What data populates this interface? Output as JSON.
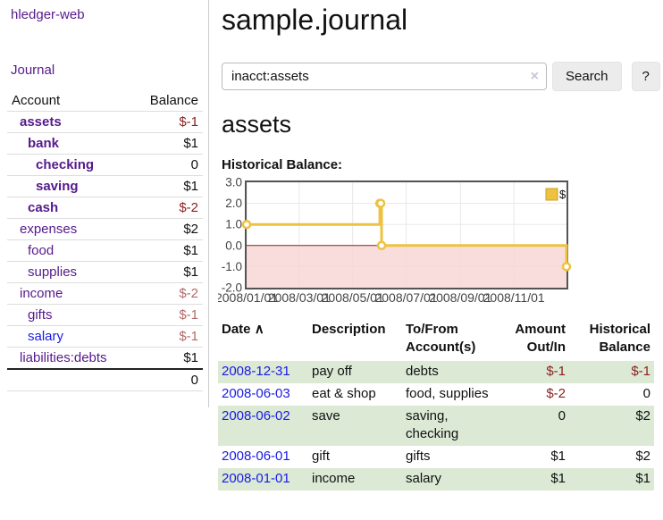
{
  "sidebar": {
    "brand": "hledger-web",
    "journal_link": "Journal",
    "accounts_table": {
      "account_header": "Account",
      "balance_header": "Balance",
      "rows": [
        {
          "name": "assets",
          "indent": 1,
          "balance": "$-1",
          "bold": true,
          "neg": "strong"
        },
        {
          "name": "bank",
          "indent": 2,
          "balance": "$1",
          "bold": true,
          "neg": "none"
        },
        {
          "name": "checking",
          "indent": 3,
          "balance": "0",
          "bold": true,
          "neg": "none"
        },
        {
          "name": "saving",
          "indent": 3,
          "balance": "$1",
          "bold": true,
          "neg": "none"
        },
        {
          "name": "cash",
          "indent": 2,
          "balance": "$-2",
          "bold": true,
          "neg": "strong"
        },
        {
          "name": "expenses",
          "indent": 1,
          "balance": "$2",
          "bold": false,
          "neg": "none"
        },
        {
          "name": "food",
          "indent": 2,
          "balance": "$1",
          "bold": false,
          "neg": "none"
        },
        {
          "name": "supplies",
          "indent": 2,
          "balance": "$1",
          "bold": false,
          "neg": "none"
        },
        {
          "name": "income",
          "indent": 1,
          "balance": "$-2",
          "bold": false,
          "neg": "soft"
        },
        {
          "name": "gifts",
          "indent": 2,
          "balance": "$-1",
          "bold": false,
          "neg": "soft"
        },
        {
          "name": "salary",
          "indent": 2,
          "balance": "$-1",
          "bold": false,
          "neg": "soft",
          "link": "blue"
        },
        {
          "name": "liabilities:debts",
          "indent": 1,
          "balance": "$1",
          "bold": false,
          "neg": "none"
        }
      ],
      "total": "0"
    }
  },
  "main": {
    "title": "sample.journal",
    "search": {
      "value": "inacct:assets",
      "clear_icon": "×",
      "search_button": "Search",
      "help_button": "?"
    },
    "account_heading": "assets",
    "chart_title": "Historical Balance:",
    "register_table": {
      "headers": [
        "Date",
        "Description",
        "To/From Account(s)",
        "Amount Out/In",
        "Historical Balance"
      ],
      "sort_icon": "∧",
      "rows": [
        {
          "date": "2008-12-31",
          "description": "pay off",
          "accounts": "debts",
          "amount": "$-1",
          "amount_neg": true,
          "balance": "$-1",
          "balance_neg": true,
          "stripe": true
        },
        {
          "date": "2008-06-03",
          "description": "eat & shop",
          "accounts": "food, supplies",
          "amount": "$-2",
          "amount_neg": true,
          "balance": "0",
          "balance_neg": false,
          "stripe": false
        },
        {
          "date": "2008-06-02",
          "description": "save",
          "accounts": "saving, checking",
          "amount": "0",
          "amount_neg": false,
          "balance": "$2",
          "balance_neg": false,
          "stripe": true
        },
        {
          "date": "2008-06-01",
          "description": "gift",
          "accounts": "gifts",
          "amount": "$1",
          "amount_neg": false,
          "balance": "$2",
          "balance_neg": false,
          "stripe": false
        },
        {
          "date": "2008-01-01",
          "description": "income",
          "accounts": "salary",
          "amount": "$1",
          "amount_neg": false,
          "balance": "$1",
          "balance_neg": false,
          "stripe": true
        }
      ]
    }
  },
  "chart_data": {
    "type": "line",
    "step": true,
    "title": "Historical Balance",
    "x_range": [
      "2008-01-01",
      "2008-12-31"
    ],
    "y_range": [
      -2,
      3
    ],
    "x_ticks": [
      {
        "date": "2008-01-01",
        "label": "2008/01/01"
      },
      {
        "date": "2008-03-01",
        "label": "2008/03/01"
      },
      {
        "date": "2008-05-01",
        "label": "2008/05/01"
      },
      {
        "date": "2008-07-01",
        "label": "2008/07/01"
      },
      {
        "date": "2008-09-01",
        "label": "2008/09/01"
      },
      {
        "date": "2008-11-01",
        "label": "2008/11/01"
      }
    ],
    "y_ticks": [
      {
        "value": 3,
        "label": "3.0"
      },
      {
        "value": 2,
        "label": "2.0"
      },
      {
        "value": 1,
        "label": "1.0"
      },
      {
        "value": 0,
        "label": "0.0"
      },
      {
        "value": -1,
        "label": "-1.0"
      },
      {
        "value": -2,
        "label": "-2.0"
      }
    ],
    "series": [
      {
        "name": "$",
        "color": "#edc240",
        "points": [
          [
            "2008-01-01",
            1
          ],
          [
            "2008-06-01",
            2
          ],
          [
            "2008-06-02",
            2
          ],
          [
            "2008-06-03",
            0
          ],
          [
            "2008-12-31",
            -1
          ]
        ]
      }
    ],
    "legend_label": "$",
    "legend_position": "top-right",
    "grid": true,
    "gridline_color": "#e8e8e8",
    "negative_region_color": "#f7d4d4",
    "zero_line_color": "#8b2020",
    "border_color": "#545454"
  },
  "colors": {
    "link_purple": "#551a8b",
    "link_blue": "#1a1ae6",
    "negative_strong": "#8b1f1f",
    "negative_soft": "#b36a6a",
    "row_stripe_green": "#dbe9d5",
    "chart_line_gold": "#edc240"
  }
}
